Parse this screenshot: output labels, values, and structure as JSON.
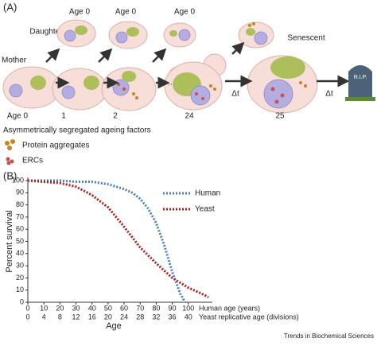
{
  "panel_a": {
    "label": "(A)",
    "top_ages": [
      "Age 0",
      "Age 0",
      "Age 0"
    ],
    "daughter": "Daughter",
    "mother": "Mother",
    "senescent": "Senescent",
    "bottom_ages": [
      "Age 0",
      "1",
      "2",
      "24",
      "25"
    ],
    "delta_t": [
      "Δt",
      "Δt"
    ],
    "tombstone": "R.I.P.",
    "legend_title": "Asymmetrically segregated ageing factors",
    "legend_items": [
      "Protein aggregates",
      "ERCs"
    ]
  },
  "panel_b_label": "(B)",
  "chart_data": {
    "type": "line",
    "ylabel": "Percent survival",
    "xlabel": "Age",
    "xaxis_label": "Human age (years)",
    "x2axis_label": "Yeast replicative age (divisions)",
    "xlim": [
      0,
      115
    ],
    "xticks": [
      0,
      10,
      20,
      30,
      40,
      50,
      60,
      70,
      80,
      90,
      100
    ],
    "x2lim": [
      0,
      46
    ],
    "x2ticks": [
      0,
      4,
      8,
      12,
      16,
      20,
      24,
      28,
      32,
      36,
      40
    ],
    "ylim": [
      0,
      100
    ],
    "yticks": [
      0,
      10,
      20,
      30,
      40,
      50,
      60,
      70,
      80,
      90,
      100
    ],
    "legend": "upper right",
    "series": [
      {
        "name": "Human",
        "color": "#4a7fc1",
        "x": [
          0,
          10,
          20,
          30,
          40,
          50,
          60,
          65,
          70,
          75,
          80,
          85,
          90,
          95,
          98
        ],
        "values": [
          100,
          100,
          100,
          99,
          99,
          97,
          93,
          90,
          85,
          77,
          65,
          47,
          25,
          7,
          0
        ]
      },
      {
        "name": "Yeast",
        "color": "#b01c1c",
        "axis": "x2",
        "x": [
          0,
          4,
          8,
          12,
          16,
          20,
          24,
          28,
          32,
          36,
          40,
          44,
          45
        ],
        "values": [
          100,
          99,
          98,
          95,
          88,
          78,
          62,
          45,
          32,
          20,
          12,
          6,
          4
        ]
      }
    ]
  },
  "footer": "Trends in Biochemical Sciences"
}
